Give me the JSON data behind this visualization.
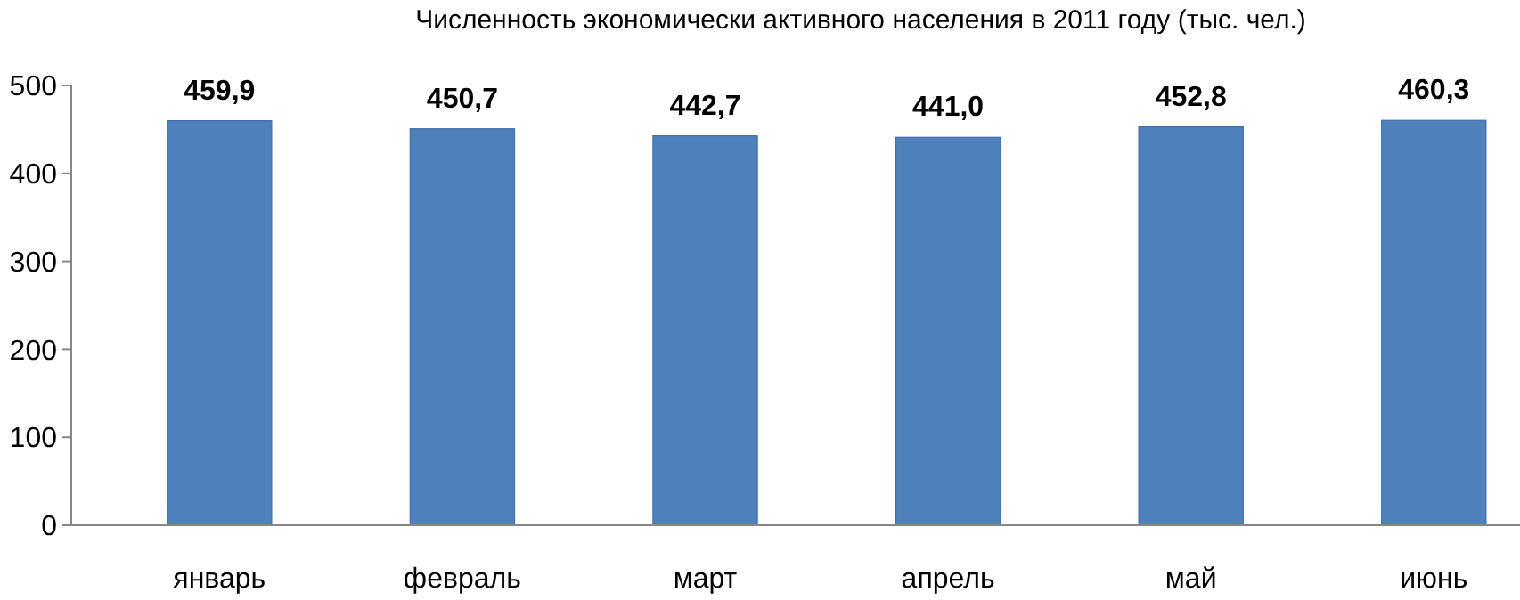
{
  "chart_data": {
    "type": "bar",
    "title": "Численность экономически активного населения в 2011 году (тыс. чел.)",
    "categories": [
      "январь",
      "февраль",
      "март",
      "апрель",
      "май",
      "июнь"
    ],
    "values": [
      459.9,
      450.7,
      442.7,
      441.0,
      452.8,
      460.3
    ],
    "value_labels": [
      "459,9",
      "450,7",
      "442,7",
      "441,0",
      "452,8",
      "460,3"
    ],
    "color": "#4f81bd",
    "ylim": [
      0,
      500
    ],
    "yticks": [
      0,
      100,
      200,
      300,
      400,
      500
    ],
    "grid": false
  }
}
